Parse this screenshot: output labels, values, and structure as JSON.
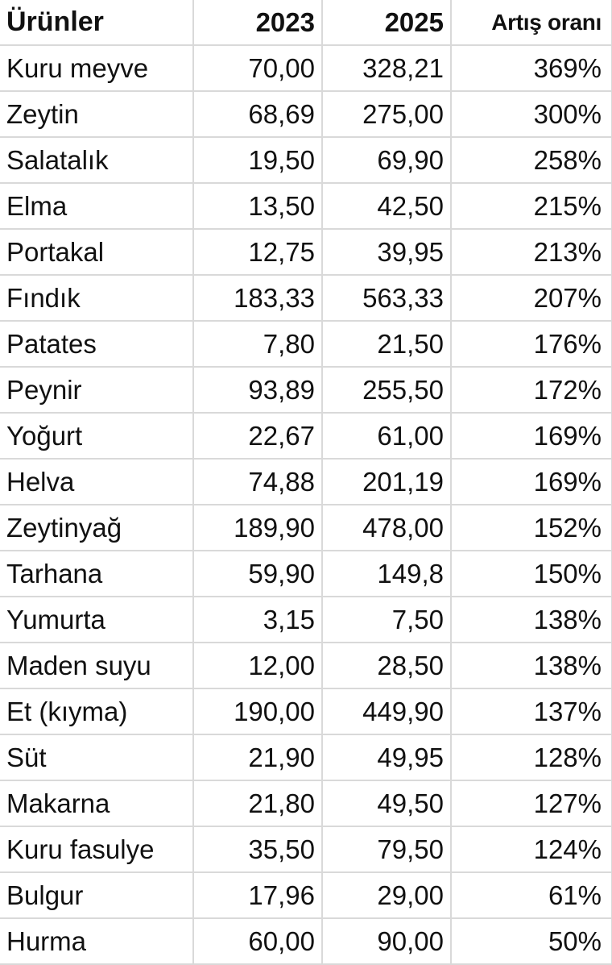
{
  "table": {
    "headers": {
      "name": "Ürünler",
      "y2023": "2023",
      "y2025": "2025",
      "rate": "Artış oranı"
    },
    "rows": [
      {
        "name": "Kuru meyve",
        "y2023": "70,00",
        "y2025": "328,21",
        "rate": "369%"
      },
      {
        "name": "Zeytin",
        "y2023": "68,69",
        "y2025": "275,00",
        "rate": "300%"
      },
      {
        "name": "Salatalık",
        "y2023": "19,50",
        "y2025": "69,90",
        "rate": "258%"
      },
      {
        "name": "Elma",
        "y2023": "13,50",
        "y2025": "42,50",
        "rate": "215%"
      },
      {
        "name": "Portakal",
        "y2023": "12,75",
        "y2025": "39,95",
        "rate": "213%"
      },
      {
        "name": "Fındık",
        "y2023": "183,33",
        "y2025": "563,33",
        "rate": "207%"
      },
      {
        "name": "Patates",
        "y2023": "7,80",
        "y2025": "21,50",
        "rate": "176%"
      },
      {
        "name": "Peynir",
        "y2023": "93,89",
        "y2025": "255,50",
        "rate": "172%"
      },
      {
        "name": "Yoğurt",
        "y2023": "22,67",
        "y2025": "61,00",
        "rate": "169%"
      },
      {
        "name": "Helva",
        "y2023": "74,88",
        "y2025": "201,19",
        "rate": "169%"
      },
      {
        "name": "Zeytinyağ",
        "y2023": "189,90",
        "y2025": "478,00",
        "rate": "152%"
      },
      {
        "name": "Tarhana",
        "y2023": "59,90",
        "y2025": "149,8",
        "rate": "150%"
      },
      {
        "name": "Yumurta",
        "y2023": "3,15",
        "y2025": "7,50",
        "rate": "138%"
      },
      {
        "name": "Maden suyu",
        "y2023": "12,00",
        "y2025": "28,50",
        "rate": "138%"
      },
      {
        "name": "Et (kıyma)",
        "y2023": "190,00",
        "y2025": "449,90",
        "rate": "137%"
      },
      {
        "name": "Süt",
        "y2023": "21,90",
        "y2025": "49,95",
        "rate": "128%"
      },
      {
        "name": "Makarna",
        "y2023": "21,80",
        "y2025": "49,50",
        "rate": "127%"
      },
      {
        "name": "Kuru fasulye",
        "y2023": "35,50",
        "y2025": "79,50",
        "rate": "124%"
      },
      {
        "name": "Bulgur",
        "y2023": "17,96",
        "y2025": "29,00",
        "rate": "61%"
      },
      {
        "name": "Hurma",
        "y2023": "60,00",
        "y2025": "90,00",
        "rate": "50%"
      }
    ]
  },
  "colors": {
    "gridline": "#d9d9d9",
    "text": "#111111",
    "background": "#ffffff"
  }
}
